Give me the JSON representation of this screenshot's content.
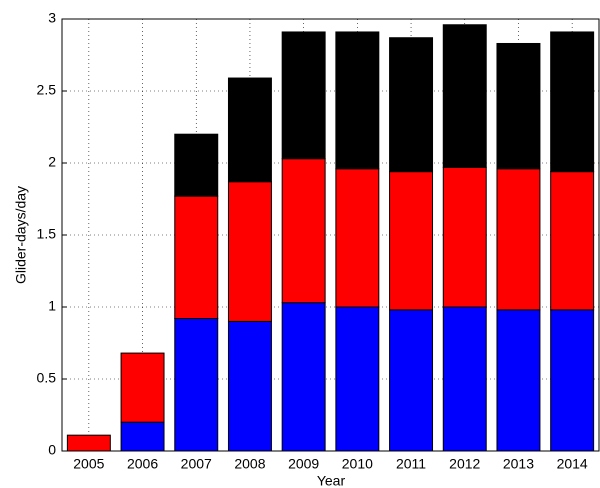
{
  "chart_data": {
    "type": "stacked_bar",
    "x_label": "Year",
    "y_label": "Glider-days/day",
    "categories": [
      "2005",
      "2006",
      "2007",
      "2008",
      "2009",
      "2010",
      "2011",
      "2012",
      "2013",
      "2014"
    ],
    "series": [
      {
        "color": "#0000ff",
        "values": [
          0,
          0.2,
          0.92,
          0.9,
          1.03,
          1.0,
          0.98,
          1.0,
          0.98,
          0.98
        ]
      },
      {
        "color": "#ff0000",
        "values": [
          0.11,
          0.48,
          0.85,
          0.97,
          1.0,
          0.96,
          0.96,
          0.97,
          0.98,
          0.96
        ]
      },
      {
        "color": "#000000",
        "values": [
          0,
          0,
          0.43,
          0.72,
          0.88,
          0.95,
          0.93,
          0.99,
          0.87,
          0.97
        ]
      }
    ],
    "ylim": [
      0,
      3
    ],
    "yticks": [
      0,
      0.5,
      1,
      1.5,
      2,
      2.5,
      3
    ],
    "grid": true
  }
}
